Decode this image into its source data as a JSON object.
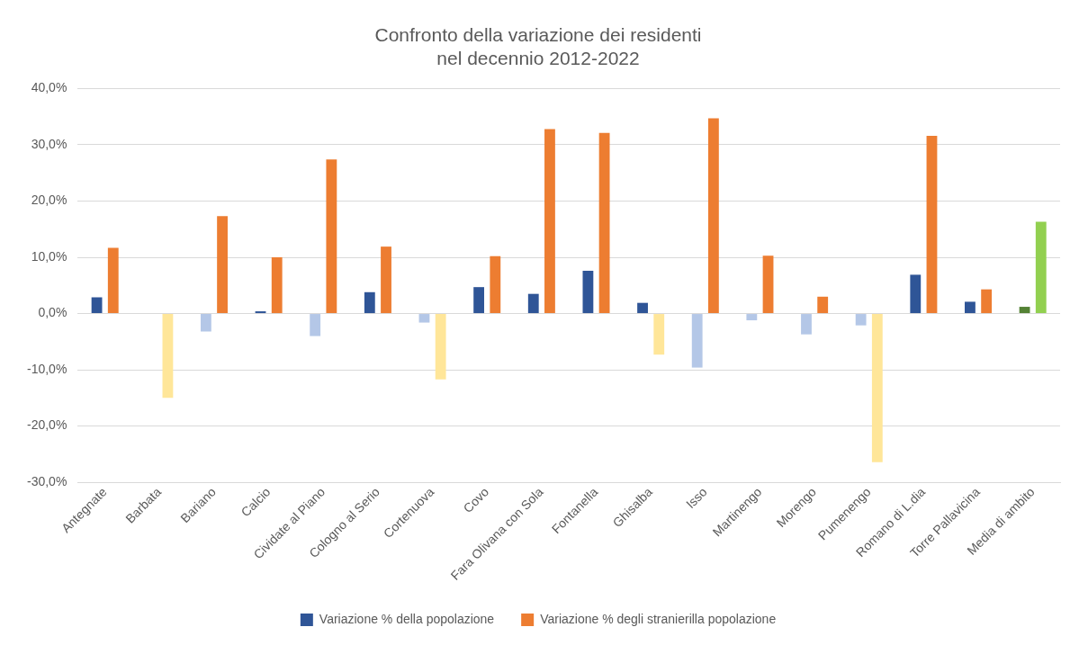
{
  "chart_data": {
    "type": "bar",
    "title": "Confronto della variazione dei residenti\nnel decennio 2012-2022",
    "categories": [
      "Antegnate",
      "Barbata",
      "Bariano",
      "Calcio",
      "Cividate al Piano",
      "Cologno al Serio",
      "Cortenuova",
      "Covo",
      "Fara Olivana con Sola",
      "Fontanella",
      "Ghisalba",
      "Isso",
      "Martinengo",
      "Morengo",
      "Pumenengo",
      "Romano di L.dia",
      "Torre Pallavicina",
      "Media di ambito"
    ],
    "series": [
      {
        "name": "Variazione % della popolazione",
        "color": "#2f5597",
        "values": [
          2.9,
          0,
          -3.2,
          0.4,
          -4.0,
          3.8,
          -1.6,
          4.7,
          3.5,
          7.6,
          1.9,
          -9.6,
          -1.2,
          -3.7,
          -2.1,
          6.9,
          2.1,
          1.2
        ],
        "colors": [
          "#2f5597",
          "#2f5597",
          "#b4c7e7",
          "#2f5597",
          "#b4c7e7",
          "#2f5597",
          "#b4c7e7",
          "#2f5597",
          "#2f5597",
          "#2f5597",
          "#2f5597",
          "#b4c7e7",
          "#b4c7e7",
          "#b4c7e7",
          "#b4c7e7",
          "#2f5597",
          "#2f5597",
          "#548235"
        ]
      },
      {
        "name": "Variazione % degli stranierilla popolazione",
        "color": "#ed7d31",
        "values": [
          11.7,
          -15.0,
          17.3,
          10.0,
          27.4,
          11.9,
          -11.7,
          10.2,
          32.8,
          32.1,
          -7.3,
          34.7,
          10.3,
          3.0,
          -26.4,
          31.6,
          4.3,
          16.3
        ],
        "colors": [
          "#ed7d31",
          "#ffe699",
          "#ed7d31",
          "#ed7d31",
          "#ed7d31",
          "#ed7d31",
          "#ffe699",
          "#ed7d31",
          "#ed7d31",
          "#ed7d31",
          "#ffe699",
          "#ed7d31",
          "#ed7d31",
          "#ed7d31",
          "#ffe699",
          "#ed7d31",
          "#ed7d31",
          "#92d050"
        ]
      }
    ],
    "ylim": [
      -30,
      40
    ],
    "yticks": [
      {
        "value": -30,
        "label": "-30,0%"
      },
      {
        "value": -20,
        "label": "-20,0%"
      },
      {
        "value": -10,
        "label": "-10,0%"
      },
      {
        "value": 0,
        "label": "0,0%"
      },
      {
        "value": 10,
        "label": "10,0%"
      },
      {
        "value": 20,
        "label": "20,0%"
      },
      {
        "value": 30,
        "label": "30,0%"
      },
      {
        "value": 40,
        "label": "40,0%"
      }
    ],
    "grid": "y",
    "legend": "bottom"
  }
}
